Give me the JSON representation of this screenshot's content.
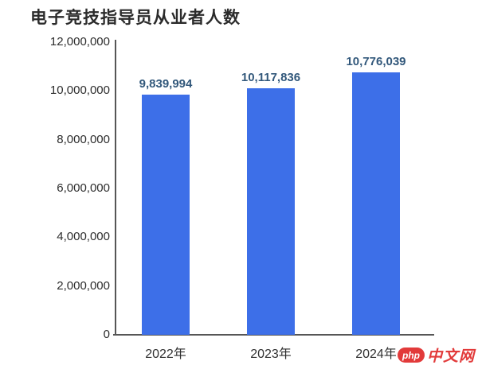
{
  "title": "电子竞技指导员从业者人数",
  "colors": {
    "bar": "#3d6fe8",
    "data_label": "#32587b",
    "axis_line": "#565656",
    "tick_label": "#2d2d2d",
    "title": "#2b2b2b",
    "watermark_red": "#e23a3a"
  },
  "watermark": {
    "logo_text": "php",
    "site_text": "中文网"
  },
  "chart_data": {
    "type": "bar",
    "title": "电子竞技指导员从业者人数",
    "categories": [
      "2022年",
      "2023年",
      "2024年"
    ],
    "values": [
      9839994,
      10117836,
      10776039
    ],
    "value_labels": [
      "9,839,994",
      "10,117,836",
      "10,776,039"
    ],
    "xlabel": "",
    "ylabel": "",
    "ylim": [
      0,
      12000000
    ],
    "ytick_interval": 2000000,
    "ytick_labels": [
      "0",
      "2,000,000",
      "4,000,000",
      "6,000,000",
      "8,000,000",
      "10,000,000",
      "12,000,000"
    ],
    "grid": false,
    "legend": false,
    "bar_color": "#3d6fe8"
  }
}
